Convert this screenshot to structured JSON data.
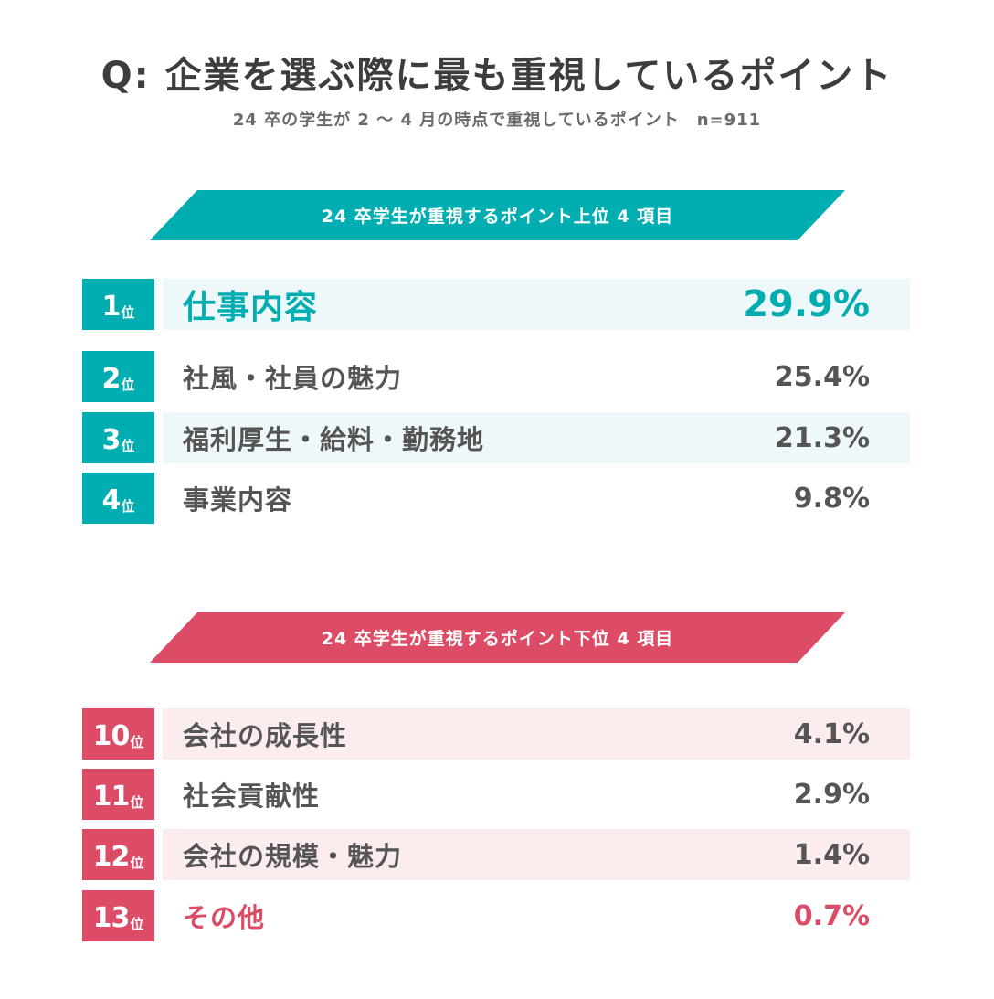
{
  "title": "Q: 企業を選ぶ際に最も重視しているポイント",
  "subtitle": "24 卒の学生が 2 〜 4 月の時点で重視しているポイント　n=911",
  "colors": {
    "teal": "#00adb0",
    "pink": "#dc4c66"
  },
  "top_section": {
    "banner": "24 卒学生が重視するポイント上位 4 項目"
  },
  "bottom_section": {
    "banner": "24 卒学生が重視するポイント下位 4 項目"
  },
  "chart_data": {
    "type": "table",
    "title": "Q: 企業を選ぶ際に最も重視しているポイント",
    "subtitle": "24 卒の学生が 2 〜 4 月の時点で重視しているポイント　n=911",
    "unit": "%",
    "top": [
      {
        "rank": "1",
        "rank_suffix": "位",
        "label": "仕事内容",
        "value": 29.9,
        "value_text": "29.9%"
      },
      {
        "rank": "2",
        "rank_suffix": "位",
        "label": "社風・社員の魅力",
        "value": 25.4,
        "value_text": "25.4%"
      },
      {
        "rank": "3",
        "rank_suffix": "位",
        "label": "福利厚生・給料・勤務地",
        "value": 21.3,
        "value_text": "21.3%"
      },
      {
        "rank": "4",
        "rank_suffix": "位",
        "label": "事業内容",
        "value": 9.8,
        "value_text": "9.8%"
      }
    ],
    "bottom": [
      {
        "rank": "10",
        "rank_suffix": "位",
        "label": "会社の成長性",
        "value": 4.1,
        "value_text": "4.1%"
      },
      {
        "rank": "11",
        "rank_suffix": "位",
        "label": "社会貢献性",
        "value": 2.9,
        "value_text": "2.9%"
      },
      {
        "rank": "12",
        "rank_suffix": "位",
        "label": "会社の規模・魅力",
        "value": 1.4,
        "value_text": "1.4%"
      },
      {
        "rank": "13",
        "rank_suffix": "位",
        "label": "その他",
        "value": 0.7,
        "value_text": "0.7%"
      }
    ]
  }
}
